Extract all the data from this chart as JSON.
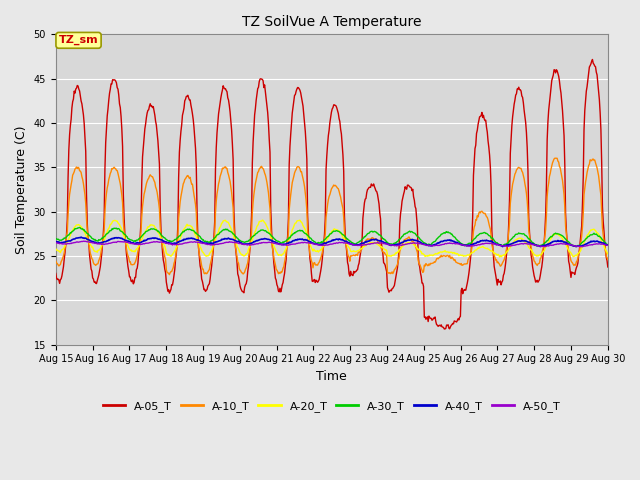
{
  "title": "TZ SoilVue A Temperature",
  "xlabel": "Time",
  "ylabel": "Soil Temperature (C)",
  "ylim": [
    15,
    50
  ],
  "yticks": [
    15,
    20,
    25,
    30,
    35,
    40,
    45,
    50
  ],
  "xtick_labels": [
    "Aug 15",
    "Aug 16",
    "Aug 17",
    "Aug 18",
    "Aug 19",
    "Aug 20",
    "Aug 21",
    "Aug 22",
    "Aug 23",
    "Aug 24",
    "Aug 25",
    "Aug 26",
    "Aug 27",
    "Aug 28",
    "Aug 29",
    "Aug 30"
  ],
  "annotation_text": "TZ_sm",
  "annotation_color": "#cc0000",
  "annotation_bg": "#ffff99",
  "annotation_border": "#999900",
  "series_colors": [
    "#cc0000",
    "#ff8800",
    "#ffff00",
    "#00cc00",
    "#0000cc",
    "#9900cc"
  ],
  "series_labels": [
    "A-05_T",
    "A-10_T",
    "A-20_T",
    "A-30_T",
    "A-40_T",
    "A-50_T"
  ],
  "fig_bg": "#e8e8e8",
  "plot_bg": "#d8d8d8",
  "grid_color": "#ffffff",
  "figsize": [
    6.4,
    4.8
  ],
  "dpi": 100
}
